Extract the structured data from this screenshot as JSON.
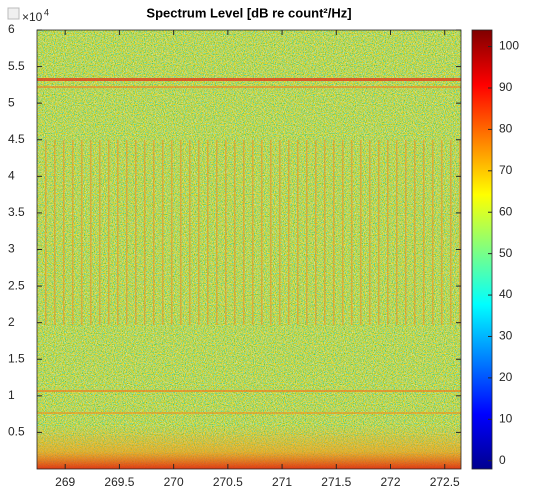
{
  "chart_data": {
    "type": "spectrogram",
    "title": "Spectrum Level [dB re count²/Hz]",
    "y_exponent_base": "×10",
    "y_exponent": 4,
    "xlim": [
      268.74,
      272.65
    ],
    "xticks": [
      269,
      269.5,
      270,
      270.5,
      271,
      271.5,
      272,
      272.5
    ],
    "ylim": [
      0,
      6
    ],
    "yticks": [
      0.5,
      1,
      1.5,
      2,
      2.5,
      3,
      3.5,
      4,
      4.5,
      5,
      5.5,
      6
    ],
    "clim": [
      -2,
      104
    ],
    "cticks": [
      0,
      10,
      20,
      30,
      40,
      50,
      60,
      70,
      80,
      90,
      100
    ],
    "colormap": [
      "#00008f",
      "#0000ff",
      "#0080ff",
      "#00ffff",
      "#80ff80",
      "#ffff00",
      "#ff8000",
      "#ff0000",
      "#800000"
    ]
  }
}
